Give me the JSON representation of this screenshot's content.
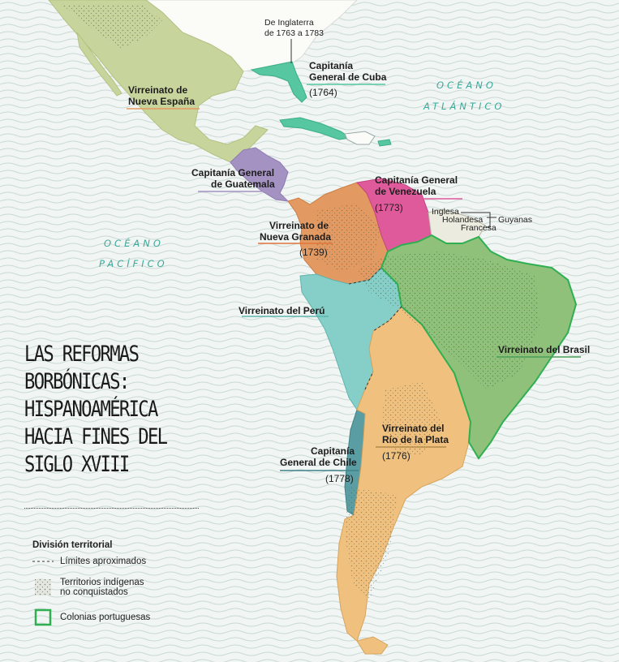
{
  "title": "LAS REFORMAS BORBÓNICAS: HISPANOAMÉRICA HACIA FINES DEL SIGLO XVIII",
  "title_lines": [
    "LAS REFORMAS",
    "BORBÓNICAS:",
    "HISPANOAMÉRICA",
    "HACIA FINES DEL",
    "SIGLO XVIII"
  ],
  "oceans": {
    "atlantic": [
      "OCÉANO",
      "ATLÁNTICO"
    ],
    "pacific": [
      "OCÉANO",
      "PACÍFICO"
    ]
  },
  "regions": {
    "nueva_espana": {
      "name": [
        "Virreinato de",
        "Nueva España"
      ],
      "color": "#c7d59c"
    },
    "cuba": {
      "name": [
        "Capitanía",
        "General de Cuba"
      ],
      "date": "(1764)",
      "color": "#56c7a0"
    },
    "guatemala": {
      "name": [
        "Capitanía General",
        "de Guatemala"
      ],
      "color": "#a493c2"
    },
    "venezuela": {
      "name": [
        "Capitanía General",
        "de Venezuela"
      ],
      "date": "(1773)",
      "color": "#df5a9b"
    },
    "nueva_granada": {
      "name": [
        "Virreinato de",
        "Nueva Granada"
      ],
      "date": "(1739)",
      "color": "#e39a62"
    },
    "peru": {
      "name": [
        "Virreinato del Perú"
      ],
      "color": "#86cfc9"
    },
    "brasil": {
      "name": [
        "Virreinato del Brasil"
      ],
      "color": "#8fc17a"
    },
    "rio_plata": {
      "name": [
        "Virreinato del",
        "Río de la Plata"
      ],
      "date": "(1776)",
      "color": "#f0c07e"
    },
    "chile": {
      "name": [
        "Capitanía",
        "General de Chile"
      ],
      "date": "(1778)",
      "color": "#5a9ea4"
    }
  },
  "notes": {
    "inglaterra": [
      "De Inglaterra",
      "de 1763 a 1783"
    ],
    "guyanas": {
      "items": [
        "Inglesa",
        "Holandesa",
        "Francesa"
      ],
      "group": "Guyanas"
    }
  },
  "legend": {
    "title": "División territorial",
    "items": [
      {
        "label": "Límites aproximados",
        "symbol": "dashed-line"
      },
      {
        "label": [
          "Territorios indígenas",
          "no conquistados"
        ],
        "symbol": "dotted-area"
      },
      {
        "label": "Colonias portuguesas",
        "symbol": "green-outline",
        "color": "#2faf52"
      }
    ]
  }
}
